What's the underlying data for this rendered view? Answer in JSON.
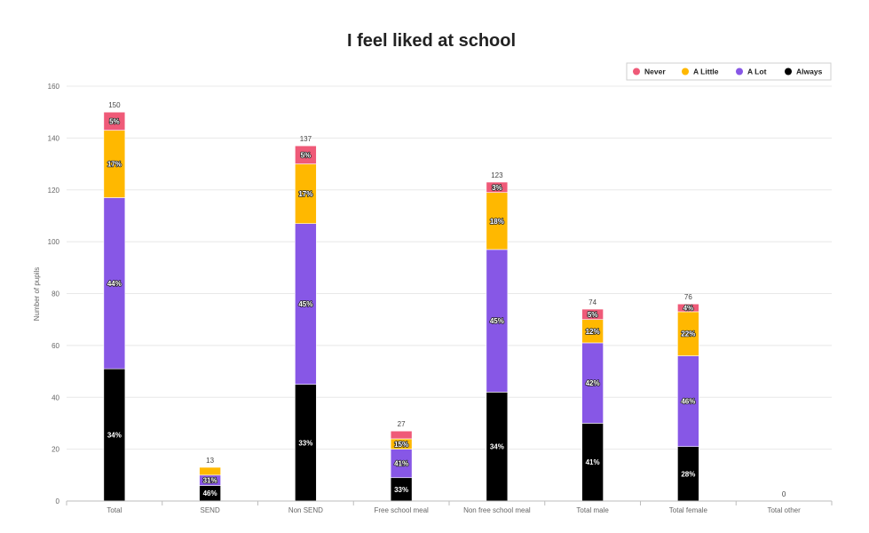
{
  "chart_data": {
    "type": "bar",
    "stacked": true,
    "title": "I feel liked at school",
    "xlabel": "",
    "ylabel": "Number of pupils",
    "ylim": [
      0,
      160
    ],
    "yticks": [
      0,
      20,
      40,
      60,
      80,
      100,
      120,
      140,
      160
    ],
    "grid": true,
    "legend_position": "top-right",
    "categories": [
      "Total",
      "SEND",
      "Non SEND",
      "Free school meal",
      "Non free school meal",
      "Total male",
      "Total female",
      "Total other"
    ],
    "totals": [
      150,
      13,
      137,
      27,
      123,
      74,
      76,
      0
    ],
    "series": [
      {
        "name": "Always",
        "color": "#000000",
        "values": [
          51,
          6,
          45,
          9,
          42,
          30,
          21,
          0
        ],
        "labels": [
          "34%",
          "46%",
          "33%",
          "33%",
          "34%",
          "41%",
          "28%",
          ""
        ]
      },
      {
        "name": "A Lot",
        "color": "#8757e6",
        "values": [
          66,
          4,
          62,
          11,
          55,
          31,
          35,
          0
        ],
        "labels": [
          "44%",
          "31%",
          "45%",
          "41%",
          "45%",
          "42%",
          "46%",
          ""
        ]
      },
      {
        "name": "A Little",
        "color": "#ffb800",
        "values": [
          26,
          3,
          23,
          4,
          22,
          9,
          17,
          0
        ],
        "labels": [
          "17%",
          "",
          "17%",
          "15%",
          "18%",
          "12%",
          "22%",
          ""
        ]
      },
      {
        "name": "Never",
        "color": "#ef5a78",
        "values": [
          7,
          0,
          7,
          3,
          4,
          4,
          3,
          0
        ],
        "labels": [
          "5%",
          "",
          "5%",
          "",
          "3%",
          "5%",
          "4%",
          ""
        ]
      }
    ],
    "legend_order": [
      "Never",
      "A Little",
      "A Lot",
      "Always"
    ]
  }
}
